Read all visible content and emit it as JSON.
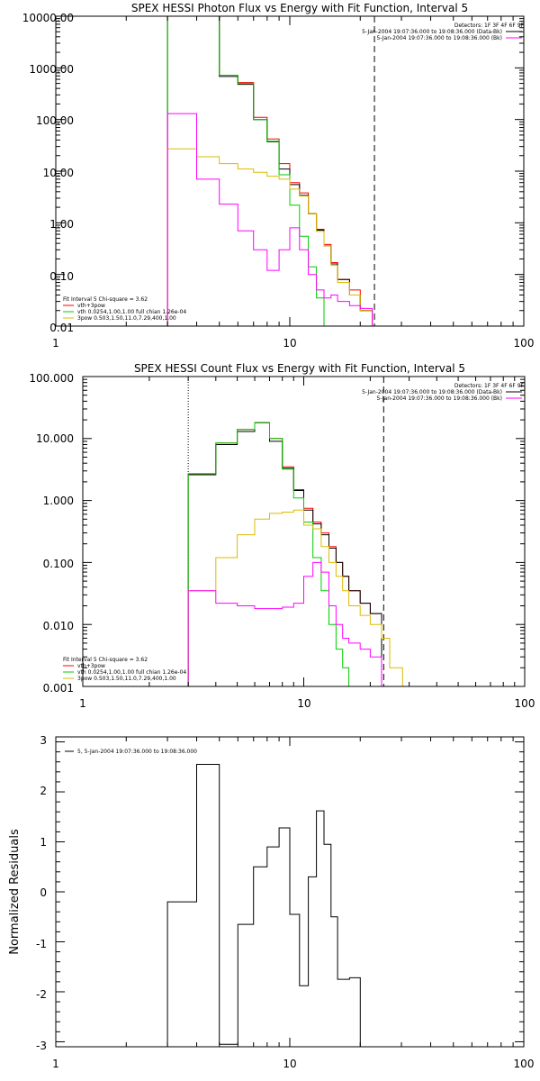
{
  "chart_data": [
    {
      "type": "line",
      "title": "SPEX HESSI Photon Flux vs Energy with Fit Function, Interval 5",
      "xscale": "log",
      "yscale": "log",
      "xlim": [
        1,
        100
      ],
      "ylim": [
        0.01,
        10000
      ],
      "xtick_labels": [
        "1",
        "10",
        "100"
      ],
      "ytick_labels": [
        "10000.00",
        "1000.00",
        "100.00",
        "10.00",
        "1.00",
        "0.10",
        "0.01"
      ],
      "ytick_values": [
        10000,
        1000,
        100,
        10,
        1,
        0.1,
        0.01
      ],
      "vlines": [
        {
          "x": 3.0,
          "style": "dotted"
        },
        {
          "x": 23.0,
          "style": "dashed"
        }
      ],
      "header_lines": [
        "Detectors: 1F 3F 4F 6F 9F",
        "5-Jan-2004 19:07:36.000 to 19:08:36.000 (Data-Bk)",
        "5-Jan-2004 19:07:36.000 to 19:08:36.000 (Bk)"
      ],
      "legend_title": "Fit Interval  5    Chi-square = 3.62",
      "legend_location": "lower-left",
      "series": [
        {
          "name": "vth+3pow",
          "color": "#ff0000",
          "edges": [
            3,
            4,
            5,
            6,
            7,
            8,
            9,
            10,
            11,
            12,
            13,
            14,
            15,
            16,
            18,
            20,
            22.5
          ],
          "values": [
            10000,
            10000,
            720,
            520,
            110,
            42,
            14,
            6,
            3.8,
            1.5,
            0.75,
            0.38,
            0.17,
            0.08,
            0.05,
            0.02
          ]
        },
        {
          "name": "",
          "color": "#000000",
          "edges": [
            3,
            4,
            5,
            6,
            7,
            8,
            9,
            10,
            11,
            12,
            13,
            14,
            15,
            16,
            18,
            20,
            22.5
          ],
          "values": [
            10000,
            10000,
            680,
            480,
            100,
            37,
            11,
            5.5,
            3.4,
            1.5,
            0.72,
            0.36,
            0.16,
            0.08,
            0.04,
            0.02
          ]
        },
        {
          "name": "vth 0.0254,1.00,1.00  full chian 1.26e-04",
          "color": "#00cc00",
          "edges": [
            3,
            4,
            5,
            6,
            7,
            8,
            9,
            10,
            11,
            12,
            13,
            14,
            15
          ],
          "values": [
            10000,
            10000,
            720,
            500,
            100,
            38,
            8.5,
            2.2,
            0.55,
            0.14,
            0.035,
            0.01
          ]
        },
        {
          "name": "3pow 0.503,1.50,11.0,7.29,400,1.00",
          "color": "#ddbb00",
          "edges": [
            3,
            4,
            5,
            6,
            7,
            8,
            9,
            10,
            11,
            12,
            13,
            14,
            15,
            16,
            18,
            20,
            22.5,
            24.5
          ],
          "values": [
            27,
            19,
            14,
            11,
            9.5,
            8,
            7,
            4.5,
            3.3,
            1.5,
            0.68,
            0.36,
            0.15,
            0.07,
            0.04,
            0.02,
            0.01
          ]
        },
        {
          "name": "",
          "color": "#ff00ff",
          "edges": [
            3,
            4,
            5,
            6,
            7,
            8,
            9,
            10,
            11,
            12,
            13,
            14,
            15,
            16,
            18,
            20,
            22.5
          ],
          "values": [
            130,
            7,
            2.3,
            0.7,
            0.3,
            0.12,
            0.3,
            0.8,
            0.3,
            0.1,
            0.05,
            0.035,
            0.04,
            0.03,
            0.025,
            0.022
          ]
        }
      ]
    },
    {
      "type": "line",
      "title": "SPEX HESSI Count Flux vs Energy with Fit Function, Interval 5",
      "xscale": "log",
      "yscale": "log",
      "xlim": [
        1,
        100
      ],
      "ylim": [
        0.001,
        100
      ],
      "xtick_labels": [
        "1",
        "10",
        "100"
      ],
      "ytick_labels": [
        "100.000",
        "10.000",
        "1.000",
        "0.100",
        "0.010",
        "0.001"
      ],
      "ytick_values": [
        100,
        10,
        1,
        0.1,
        0.01,
        0.001
      ],
      "vlines": [
        {
          "x": 3.0,
          "style": "dotted"
        },
        {
          "x": 23.0,
          "style": "dashed"
        }
      ],
      "header_lines": [
        "Detectors: 1F 3F 4F 6F 9F",
        "5-Jan-2004 19:07:36.000 to 19:08:36.000 (Data-Bk)",
        "5-Jan-2004 19:07:36.000 to 19:08:36.000 (Bk)"
      ],
      "legend_title": "Fit Interval  5    Chi-square = 3.62",
      "legend_location": "lower-left",
      "series": [
        {
          "name": "vth+3pow",
          "color": "#ff0000",
          "edges": [
            3,
            4,
            5,
            6,
            7,
            8,
            9,
            10,
            11,
            12,
            13,
            14,
            15,
            16,
            18,
            20,
            22.5
          ],
          "values": [
            2.7,
            8.5,
            14,
            18,
            10,
            3.5,
            1.5,
            0.75,
            0.45,
            0.3,
            0.18,
            0.1,
            0.06,
            0.035,
            0.022,
            0.015
          ]
        },
        {
          "name": "",
          "color": "#000000",
          "edges": [
            3,
            4,
            5,
            6,
            7,
            8,
            9,
            10,
            11,
            12,
            13,
            14,
            15,
            16,
            18,
            20,
            22.5
          ],
          "values": [
            2.6,
            8,
            13,
            18,
            9,
            3.3,
            1.45,
            0.7,
            0.42,
            0.28,
            0.17,
            0.1,
            0.06,
            0.035,
            0.022,
            0.015
          ]
        },
        {
          "name": "vth 0.0254,1.00,1.00  full chian 1.26e-04",
          "color": "#00cc00",
          "edges": [
            3,
            4,
            5,
            6,
            7,
            8,
            9,
            10,
            11,
            12,
            13,
            14,
            15,
            16,
            18
          ],
          "values": [
            2.7,
            8.5,
            14,
            18,
            10,
            3.2,
            1.1,
            0.45,
            0.12,
            0.035,
            0.01,
            0.004,
            0.002,
            0.001
          ]
        },
        {
          "name": "3pow 0.503,1.50,11.0,7.29,400,1.00",
          "color": "#ddbb00",
          "edges": [
            3,
            4,
            5,
            6,
            7,
            8,
            9,
            10,
            11,
            12,
            13,
            14,
            15,
            16,
            18,
            20,
            22.5,
            24.5,
            28
          ],
          "values": [
            0.035,
            0.12,
            0.28,
            0.5,
            0.62,
            0.65,
            0.7,
            0.4,
            0.35,
            0.18,
            0.1,
            0.06,
            0.035,
            0.02,
            0.014,
            0.01,
            0.006,
            0.002
          ]
        },
        {
          "name": "",
          "color": "#ff00ff",
          "edges": [
            3,
            4,
            5,
            6,
            7,
            8,
            9,
            10,
            11,
            12,
            13,
            14,
            15,
            16,
            18,
            20,
            22.5
          ],
          "values": [
            0.035,
            0.022,
            0.02,
            0.018,
            0.018,
            0.019,
            0.022,
            0.06,
            0.1,
            0.07,
            0.02,
            0.01,
            0.006,
            0.005,
            0.004,
            0.003
          ]
        }
      ]
    },
    {
      "type": "line",
      "title": "",
      "xscale": "log",
      "yscale": "linear",
      "xlim": [
        1,
        100
      ],
      "ylim": [
        -3.1,
        3.1
      ],
      "ylabel": "Normalized Residuals",
      "xtick_labels": [
        "1",
        "10",
        "100"
      ],
      "ytick_labels": [
        "3",
        "2",
        "1",
        "0",
        "-1",
        "-2",
        "-3"
      ],
      "ytick_values": [
        3,
        2,
        1,
        0,
        -1,
        -2,
        -3
      ],
      "legend_location": "top-left",
      "series": [
        {
          "name": "5,  5-Jan-2004 19:07:36.000 to 19:08:36.000",
          "color": "#000000",
          "edges": [
            3,
            4,
            5,
            6,
            7,
            8,
            9,
            10,
            11,
            12,
            13,
            14,
            15,
            16,
            18,
            20,
            22.5
          ],
          "values": [
            -0.2,
            2.55,
            -3.05,
            -0.65,
            0.5,
            0.9,
            1.28,
            -0.45,
            -1.88,
            0.3,
            1.62,
            0.95,
            -0.5,
            -1.75,
            -1.72,
            -3.1
          ]
        }
      ]
    }
  ]
}
